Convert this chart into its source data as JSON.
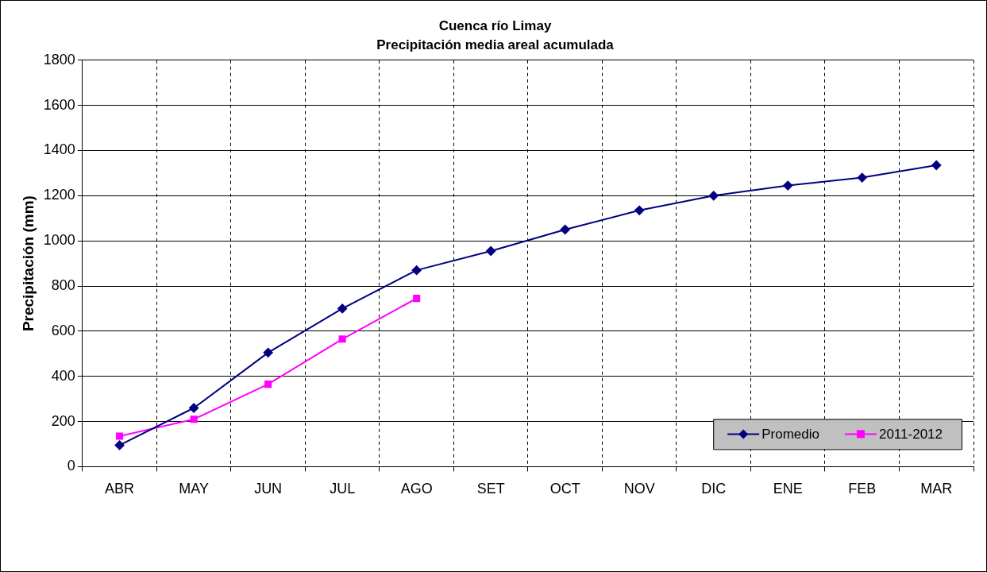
{
  "chart_data": {
    "type": "line",
    "title": "Cuenca río Limay",
    "subtitle": "Precipitación media areal acumulada",
    "ylabel": "Precipitación (mm)",
    "categories": [
      "ABR",
      "MAY",
      "JUN",
      "JUL",
      "AGO",
      "SET",
      "OCT",
      "NOV",
      "DIC",
      "ENE",
      "FEB",
      "MAR"
    ],
    "series": [
      {
        "name": "Promedio",
        "color": "#000080",
        "marker": "diamond",
        "values": [
          95,
          260,
          505,
          700,
          870,
          955,
          1050,
          1135,
          1200,
          1245,
          1280,
          1335
        ]
      },
      {
        "name": "2011-2012",
        "color": "#ff00ff",
        "marker": "square",
        "values": [
          135,
          210,
          365,
          565,
          745,
          null,
          null,
          null,
          null,
          null,
          null,
          null
        ]
      }
    ],
    "ylim": [
      0,
      1800
    ],
    "yticks": [
      0,
      200,
      400,
      600,
      800,
      1000,
      1200,
      1400,
      1600,
      1800
    ],
    "grid": true,
    "legend": "bottom right"
  }
}
